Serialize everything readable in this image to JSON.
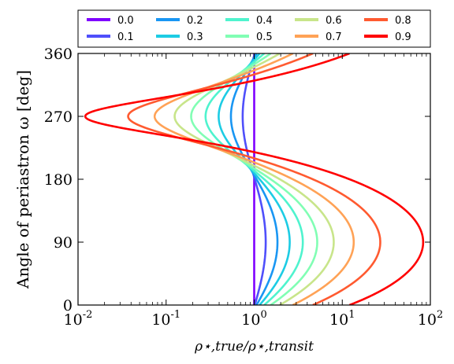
{
  "chart_data": {
    "type": "line",
    "xlabel": "ρ⋆,true/ρ⋆,transit",
    "ylabel": "Angle of periastron ω [deg]",
    "x_scale": "log",
    "xlim": [
      0.01,
      100
    ],
    "ylim": [
      0,
      360
    ],
    "x_ticks": [
      0.01,
      0.1,
      1,
      10,
      100
    ],
    "x_tick_labels": [
      {
        "base": "10",
        "exp": "-2"
      },
      {
        "base": "10",
        "exp": "-1"
      },
      {
        "base": "10",
        "exp": "0"
      },
      {
        "base": "10",
        "exp": "1"
      },
      {
        "base": "10",
        "exp": "2"
      }
    ],
    "y_ticks": [
      0,
      90,
      180,
      270,
      360
    ],
    "y_tick_labels": [
      "0",
      "90",
      "180",
      "270",
      "360"
    ],
    "legend_position": "top, above plot, 5 columns",
    "relation": "x = ((1 + e sin ω) / sqrt(1 - e^2))^3",
    "series": [
      {
        "name": "0.0",
        "eccentricity": 0.0,
        "color": "#7f00ff"
      },
      {
        "name": "0.1",
        "eccentricity": 0.1,
        "color": "#4f4ffb"
      },
      {
        "name": "0.2",
        "eccentricity": 0.2,
        "color": "#1996f3"
      },
      {
        "name": "0.3",
        "eccentricity": 0.3,
        "color": "#1dcce4"
      },
      {
        "name": "0.4",
        "eccentricity": 0.4,
        "color": "#4ff3ce"
      },
      {
        "name": "0.5",
        "eccentricity": 0.5,
        "color": "#81feb4"
      },
      {
        "name": "0.6",
        "eccentricity": 0.6,
        "color": "#c8e58a"
      },
      {
        "name": "0.7",
        "eccentricity": 0.7,
        "color": "#ffa256"
      },
      {
        "name": "0.8",
        "eccentricity": 0.8,
        "color": "#ff5a30"
      },
      {
        "name": "0.9",
        "eccentricity": 0.9,
        "color": "#ff0000"
      }
    ]
  }
}
